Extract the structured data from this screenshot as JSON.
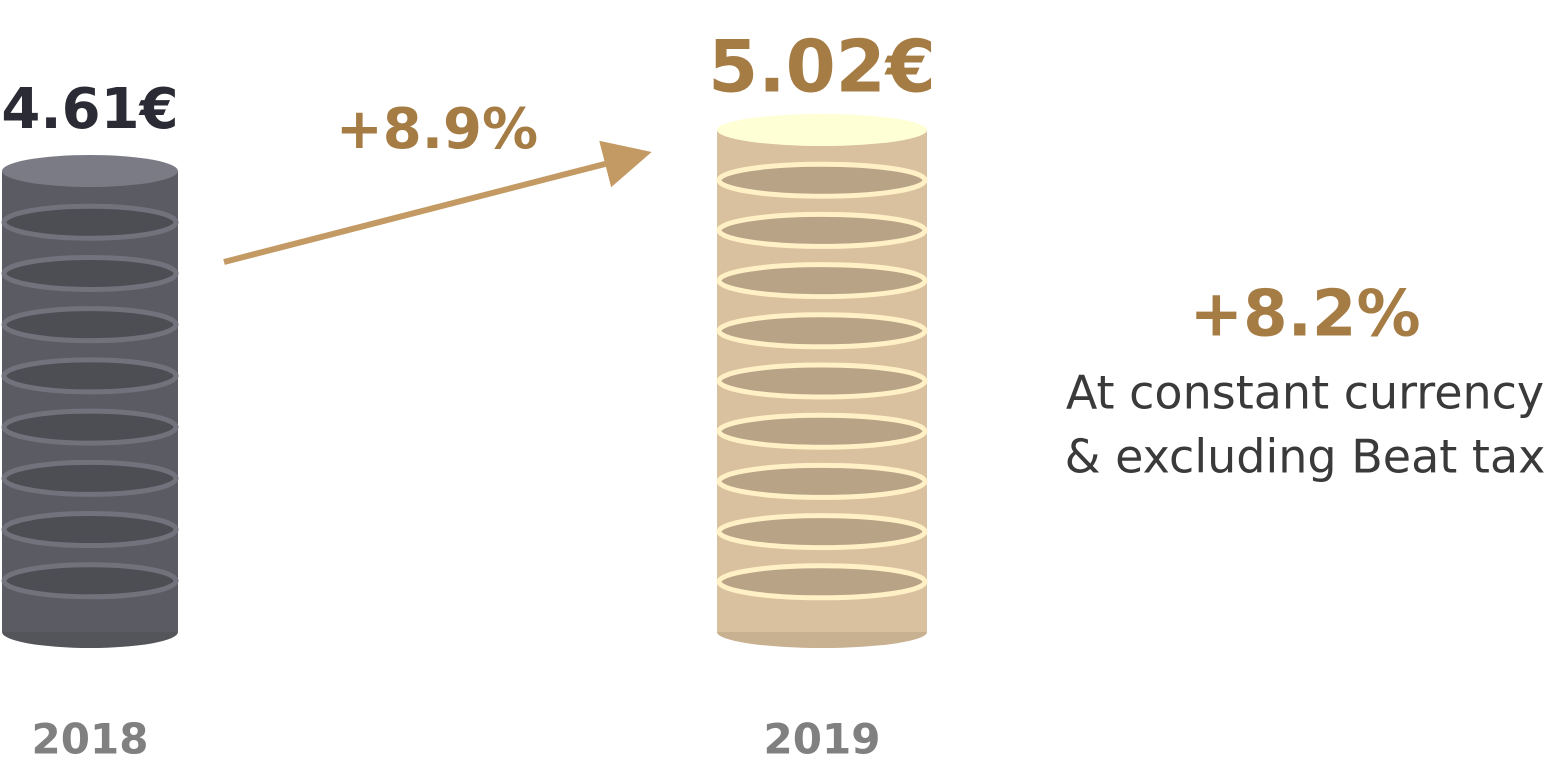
{
  "chart_data": {
    "type": "coin-stack",
    "categories": [
      "2018",
      "2019"
    ],
    "values": [
      4.61,
      5.02
    ],
    "value_labels": [
      "4.61€",
      "5.02€"
    ],
    "colors": [
      "#5b5b63",
      "#d9c09e"
    ],
    "label_colors": [
      "#2b2b35",
      "#a67c45"
    ],
    "annotations": [
      "+8.9%",
      "+8.2%",
      "At constant currency",
      "& excluding Beat tax"
    ]
  }
}
